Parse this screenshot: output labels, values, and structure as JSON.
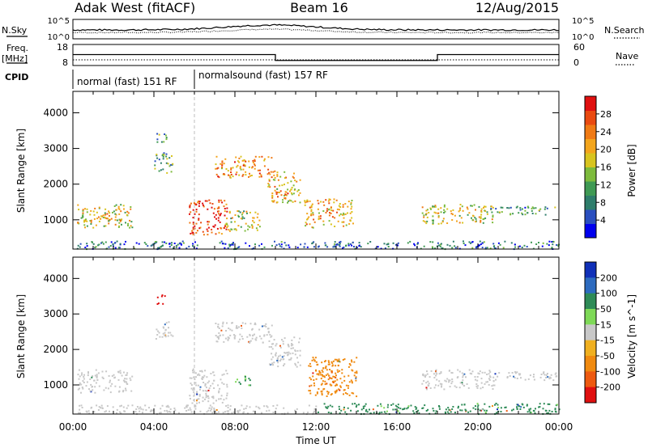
{
  "header": {
    "station": "Adak West (fitACF)",
    "beam": "Beam 16",
    "date": "12/Aug/2015"
  },
  "summary": {
    "sky_label": "N.Sky",
    "sky_ticks": [
      "10^5",
      "10^0"
    ],
    "search_label": "N.Search",
    "search_ticks": [
      "10^5",
      "10^0"
    ],
    "freq_label": "Freq.",
    "freq_unit": "[MHz]",
    "freq_ticks": [
      "18",
      "8"
    ],
    "nave_label": "Nave",
    "nave_ticks": [
      "60",
      "0"
    ],
    "cpid_label": "CPID",
    "cpid_segments": [
      {
        "label": "normal (fast) 151 RF",
        "start": 0,
        "end": 6
      },
      {
        "label": "normalsound (fast) 157 RF",
        "start": 6,
        "end": 24
      }
    ],
    "frequency_series": [
      {
        "start": 0,
        "end": 10,
        "value": 13.2
      },
      {
        "start": 10,
        "end": 18,
        "value": 10.4
      },
      {
        "start": 18,
        "end": 24,
        "value": 13.2
      }
    ]
  },
  "axes": {
    "xlabel": "Time UT",
    "x_tick_labels": [
      "00:00",
      "04:00",
      "08:00",
      "12:00",
      "16:00",
      "20:00",
      "00:00"
    ],
    "ylabel": "Slant Range [km]",
    "y_tick_labels": [
      "1000",
      "2000",
      "3000",
      "4000"
    ]
  },
  "power_colorbar": {
    "label": "Power [dB]",
    "tick_labels": [
      "4",
      "8",
      "12",
      "16",
      "20",
      "24",
      "28"
    ],
    "colors": [
      "#0000ee",
      "#2a4fbf",
      "#2e7d6b",
      "#3f9a54",
      "#7dbb3c",
      "#d8c41f",
      "#f3a51c",
      "#f07a14",
      "#ea4a10",
      "#e01010"
    ]
  },
  "velocity_colorbar": {
    "label": "Velocity [m s^-1]",
    "tick_labels": [
      "200",
      "100",
      "50",
      "15",
      "-15",
      "-50",
      "-100",
      "-200"
    ],
    "colors": [
      "#1030b8",
      "#2d6bbf",
      "#2e8b57",
      "#7ed957",
      "#c8c8c8",
      "#f0b020",
      "#f08a10",
      "#ee5a10",
      "#e01010"
    ]
  },
  "chart_data": [
    {
      "type": "heatmap",
      "name": "power",
      "xlim": [
        0,
        24
      ],
      "ylim": [
        180,
        4600
      ],
      "colorbar_range": [
        0,
        30
      ],
      "ground_cutoff_time": 6,
      "regions": [
        {
          "t": [
            0.2,
            2.9
          ],
          "r": [
            800,
            1450
          ],
          "level": 0.55
        },
        {
          "t": [
            1.0,
            2.4
          ],
          "r": [
            1000,
            1200
          ],
          "level": 0.75
        },
        {
          "t": [
            4.0,
            4.9
          ],
          "r": [
            2300,
            2900
          ],
          "level": 0.35
        },
        {
          "t": [
            4.1,
            4.6
          ],
          "r": [
            3200,
            3550
          ],
          "level": 0.3
        },
        {
          "t": [
            5.7,
            7.6
          ],
          "r": [
            600,
            1600
          ],
          "level": 0.9
        },
        {
          "t": [
            7.0,
            9.8
          ],
          "r": [
            2200,
            2800
          ],
          "level": 0.7
        },
        {
          "t": [
            7.5,
            9.2
          ],
          "r": [
            700,
            1300
          ],
          "level": 0.5
        },
        {
          "t": [
            9.6,
            11.2
          ],
          "r": [
            1500,
            2400
          ],
          "level": 0.6
        },
        {
          "t": [
            10.0,
            10.6
          ],
          "r": [
            1600,
            1800
          ],
          "level": 0.9
        },
        {
          "t": [
            11.4,
            13.8
          ],
          "r": [
            800,
            1600
          ],
          "level": 0.65
        },
        {
          "t": [
            17.2,
            20.8
          ],
          "r": [
            900,
            1450
          ],
          "level": 0.55
        },
        {
          "t": [
            20.5,
            23.9
          ],
          "r": [
            1150,
            1400
          ],
          "level": 0.3
        },
        {
          "t": [
            0.0,
            24.0
          ],
          "r": [
            200,
            420
          ],
          "level": 0.2
        }
      ]
    },
    {
      "type": "heatmap",
      "name": "velocity",
      "xlim": [
        0,
        24
      ],
      "ylim": [
        180,
        4600
      ],
      "colorbar_range": [
        -200,
        200
      ],
      "regions": [
        {
          "t": [
            0.2,
            2.9
          ],
          "r": [
            800,
            1450
          ],
          "vel": 0
        },
        {
          "t": [
            4.0,
            4.9
          ],
          "r": [
            2300,
            2800
          ],
          "vel": 0
        },
        {
          "t": [
            4.1,
            4.6
          ],
          "r": [
            3300,
            3550
          ],
          "vel": -180
        },
        {
          "t": [
            5.7,
            7.6
          ],
          "r": [
            500,
            1500
          ],
          "vel": 0
        },
        {
          "t": [
            7.0,
            9.8
          ],
          "r": [
            2200,
            2800
          ],
          "vel": 0
        },
        {
          "t": [
            8.0,
            8.8
          ],
          "r": [
            1000,
            1300
          ],
          "vel": 30
        },
        {
          "t": [
            9.6,
            11.2
          ],
          "r": [
            1500,
            2400
          ],
          "vel": 0
        },
        {
          "t": [
            11.6,
            14.0
          ],
          "r": [
            700,
            1800
          ],
          "vel": -45
        },
        {
          "t": [
            12.2,
            13.2
          ],
          "r": [
            1000,
            1500
          ],
          "vel": -70
        },
        {
          "t": [
            17.2,
            20.8
          ],
          "r": [
            900,
            1450
          ],
          "vel": 0
        },
        {
          "t": [
            20.5,
            23.9
          ],
          "r": [
            1150,
            1400
          ],
          "vel": 0
        },
        {
          "t": [
            12.0,
            24.0
          ],
          "r": [
            200,
            500
          ],
          "vel": 40
        },
        {
          "t": [
            0.0,
            12.0
          ],
          "r": [
            200,
            450
          ],
          "vel": 0
        }
      ]
    }
  ]
}
